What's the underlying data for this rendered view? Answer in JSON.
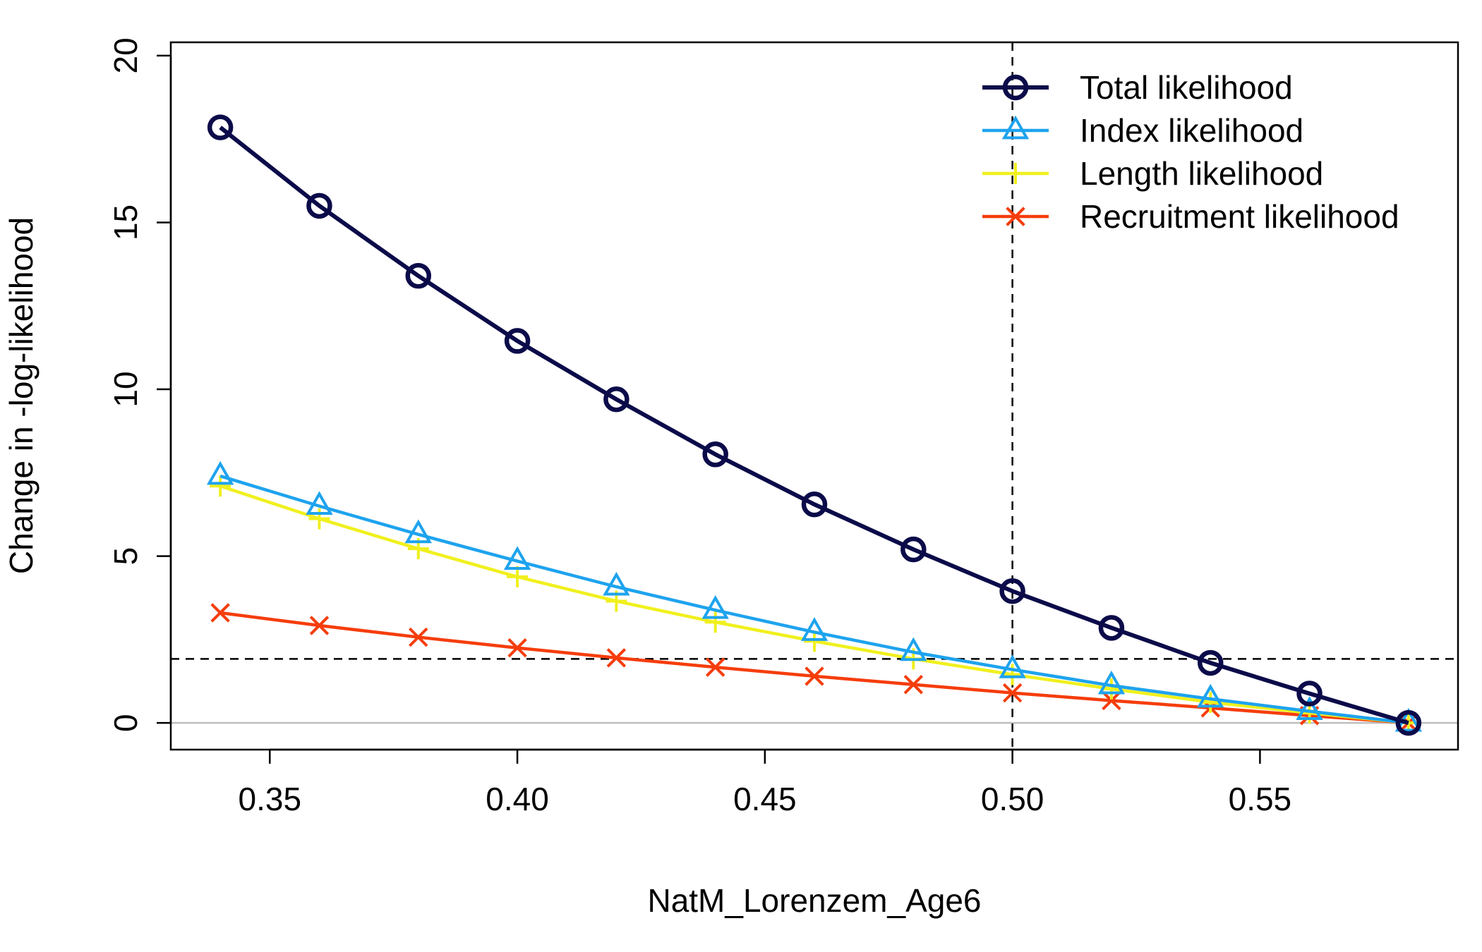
{
  "chart_data": {
    "type": "line",
    "xlabel": "NatM_Lorenzem_Age6",
    "ylabel": "Change in -log-likelihood",
    "xlim": [
      0.33,
      0.59
    ],
    "ylim": [
      -0.8,
      20.4
    ],
    "xticks": [
      0.35,
      0.4,
      0.45,
      0.5,
      0.55
    ],
    "xtick_labels": [
      "0.35",
      "0.40",
      "0.45",
      "0.50",
      "0.55"
    ],
    "yticks": [
      0,
      5,
      10,
      15,
      20
    ],
    "ytick_labels": [
      "0",
      "5",
      "10",
      "15",
      "20"
    ],
    "x": [
      0.34,
      0.36,
      0.38,
      0.4,
      0.42,
      0.44,
      0.46,
      0.48,
      0.5,
      0.52,
      0.54,
      0.56,
      0.58
    ],
    "series": [
      {
        "name": "Total likelihood",
        "color": "#0b0b4a",
        "marker": "circle",
        "values": [
          17.85,
          15.5,
          13.4,
          11.45,
          9.7,
          8.05,
          6.55,
          5.2,
          3.95,
          2.85,
          1.8,
          0.88,
          0.0
        ]
      },
      {
        "name": "Index likelihood",
        "color": "#1ea3ee",
        "marker": "triangle",
        "values": [
          7.4,
          6.5,
          5.65,
          4.85,
          4.08,
          3.38,
          2.72,
          2.12,
          1.6,
          1.12,
          0.72,
          0.35,
          0.0
        ]
      },
      {
        "name": "Length likelihood",
        "color": "#f0f01e",
        "marker": "plus",
        "values": [
          7.1,
          6.12,
          5.22,
          4.38,
          3.65,
          3.02,
          2.45,
          1.92,
          1.45,
          1.02,
          0.62,
          0.3,
          0.0
        ]
      },
      {
        "name": "Recruitment likelihood",
        "color": "#f53d0c",
        "marker": "cross",
        "values": [
          3.3,
          2.92,
          2.57,
          2.25,
          1.95,
          1.67,
          1.4,
          1.15,
          0.9,
          0.67,
          0.45,
          0.22,
          0.0
        ]
      }
    ],
    "reference_lines": {
      "vertical_x": 0.5,
      "horizontal_y": 1.92,
      "zero_line_y": 0
    },
    "grid": false,
    "legend_position": "top-right"
  }
}
